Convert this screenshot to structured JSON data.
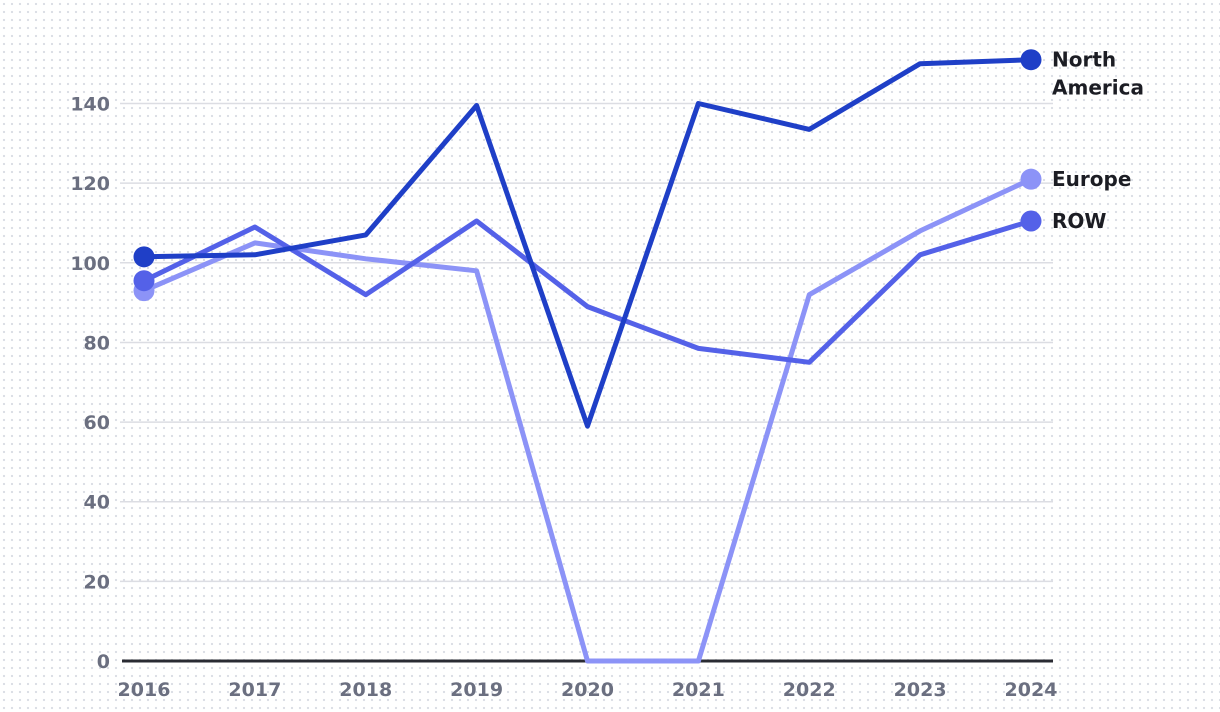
{
  "chart_data": {
    "type": "line",
    "x": [
      "2016",
      "2017",
      "2018",
      "2019",
      "2020",
      "2021",
      "2022",
      "2023",
      "2024"
    ],
    "ylim": [
      0,
      150
    ],
    "yticks": [
      0,
      20,
      40,
      60,
      80,
      100,
      120,
      140
    ],
    "grid": true,
    "legend": "end-of-line labels",
    "series": [
      {
        "name": "Europe",
        "color": "#8c93f7",
        "values": [
          93,
          105,
          101,
          98,
          0,
          0,
          92,
          108,
          121
        ]
      },
      {
        "name": "ROW",
        "color": "#5461e8",
        "values": [
          95.5,
          109,
          92,
          110.5,
          89,
          78.5,
          75,
          102,
          110.5
        ]
      },
      {
        "name": "North America",
        "label_lines": [
          "North",
          "America"
        ],
        "color": "#1f3fc7",
        "values": [
          101.5,
          102,
          107,
          139.5,
          59,
          140,
          133.5,
          150,
          151
        ]
      }
    ]
  }
}
